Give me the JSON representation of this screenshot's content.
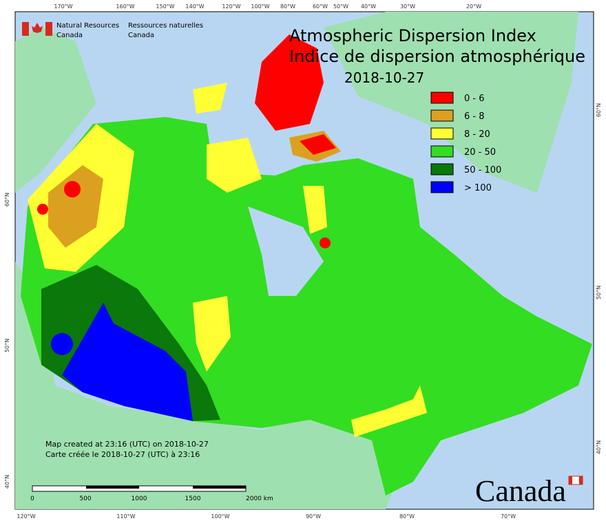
{
  "agency": {
    "en_line1": "Natural Resources",
    "en_line2": "Canada",
    "fr_line1": "Ressources naturelles",
    "fr_line2": "Canada"
  },
  "title": {
    "en": "Atmospheric Dispersion Index",
    "fr": "Indice de dispersion atmosphérique",
    "date": "2018-10-27"
  },
  "legend": [
    {
      "label": "0 - 6",
      "color": "#ff0000"
    },
    {
      "label": "6 - 8",
      "color": "#dca020"
    },
    {
      "label": "8 - 20",
      "color": "#ffff33"
    },
    {
      "label": "20 - 50",
      "color": "#33dd22"
    },
    {
      "label": "50 - 100",
      "color": "#0a780a"
    },
    {
      "label": "> 100",
      "color": "#0000ff"
    }
  ],
  "credits": {
    "en": "Map created at 23:16 (UTC) on 2018-10-27",
    "fr": "Carte créée le 2018-10-27 (UTC) à 23:16"
  },
  "scale_bar": {
    "labels": [
      "0",
      "500",
      "1000",
      "1500",
      "2000 km"
    ]
  },
  "graticule": {
    "top": [
      "170°W",
      "160°W",
      "150°W",
      "140°W",
      "120°W",
      "100°W",
      "80°W",
      "60°W",
      "50°W",
      "40°W",
      "30°W",
      "20°W"
    ],
    "bottom": [
      "120°W",
      "110°W",
      "100°W",
      "90°W",
      "80°W",
      "70°W"
    ],
    "left": [
      "60°N",
      "50°N",
      "40°N"
    ],
    "right": [
      "60°N",
      "50°N",
      "40°N"
    ]
  },
  "wordmark": "Canada"
}
